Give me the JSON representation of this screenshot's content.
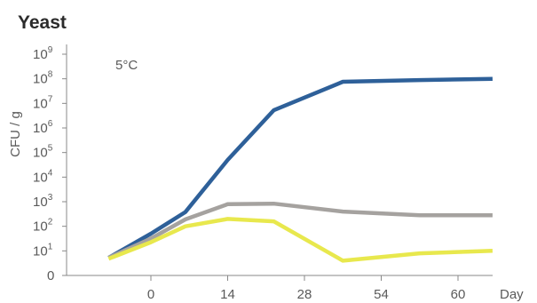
{
  "chart_data": {
    "type": "line",
    "title": "Yeast",
    "annotation": "5°C",
    "xlabel": "Day",
    "ylabel": "CFU / g",
    "x_scale": "categorical",
    "x_ticks": [
      "0",
      "14",
      "28",
      "54",
      "60"
    ],
    "y_scale": "log",
    "y_ticks": [
      {
        "base": "0",
        "exp": ""
      },
      {
        "base": "10",
        "exp": "1"
      },
      {
        "base": "10",
        "exp": "2"
      },
      {
        "base": "10",
        "exp": "3"
      },
      {
        "base": "10",
        "exp": "4"
      },
      {
        "base": "10",
        "exp": "5"
      },
      {
        "base": "10",
        "exp": "6"
      },
      {
        "base": "10",
        "exp": "7"
      },
      {
        "base": "10",
        "exp": "8"
      },
      {
        "base": "10",
        "exp": "9"
      }
    ],
    "ylim_log10": [
      0,
      9
    ],
    "x_positions": [
      -0.55,
      0,
      0.45,
      1.0,
      1.6,
      2.5,
      3.5,
      4.45
    ],
    "series": [
      {
        "color": "#2e6099",
        "values": [
          0.72,
          1.7,
          2.58,
          4.7,
          6.72,
          7.88,
          7.95,
          8.0
        ]
      },
      {
        "color": "#a5a29f",
        "values": [
          0.72,
          1.5,
          2.28,
          2.9,
          2.92,
          2.6,
          2.45,
          2.45
        ]
      },
      {
        "color": "#e8e84d",
        "values": [
          0.68,
          1.35,
          2.0,
          2.3,
          2.2,
          0.6,
          0.9,
          1.0
        ]
      }
    ],
    "grid": false,
    "legend": "none"
  }
}
